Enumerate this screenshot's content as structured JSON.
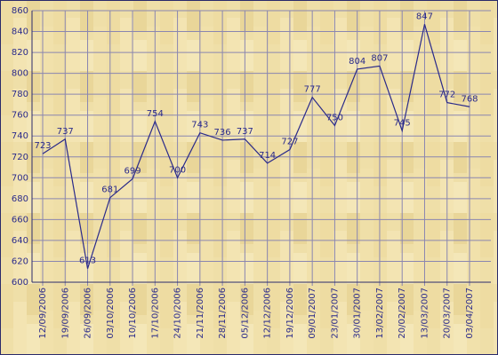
{
  "chart_data": {
    "type": "line",
    "categories": [
      "12/09/2006",
      "19/09/2006",
      "26/09/2006",
      "03/10/2006",
      "10/10/2006",
      "17/10/2006",
      "24/10/2006",
      "21/11/2006",
      "28/11/2006",
      "05/12/2006",
      "12/12/2006",
      "19/12/2006",
      "09/01/2007",
      "23/01/2007",
      "30/01/2007",
      "13/02/2007",
      "20/02/2007",
      "13/03/2007",
      "20/03/2007",
      "03/04/2007"
    ],
    "series": [
      {
        "color": "#2a2a8a",
        "values": [
          723,
          737,
          613,
          681,
          699,
          754,
          700,
          743,
          736,
          737,
          714,
          727,
          777,
          750,
          804,
          807,
          745,
          847,
          772,
          768
        ]
      }
    ],
    "ylim": [
      600,
      860
    ],
    "yticks": [
      600,
      620,
      640,
      660,
      680,
      700,
      720,
      740,
      760,
      780,
      800,
      820,
      840,
      860
    ],
    "grid": true
  }
}
